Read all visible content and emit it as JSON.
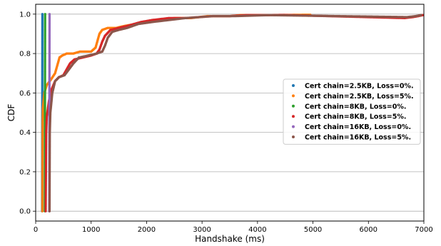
{
  "chart_data": {
    "type": "scatter",
    "xlabel": "Handshake (ms)",
    "ylabel": "CDF",
    "xlim": [
      0,
      7000
    ],
    "ylim": [
      -0.05,
      1.05
    ],
    "xticks": [
      0,
      1000,
      2000,
      3000,
      4000,
      5000,
      6000,
      7000
    ],
    "yticks": [
      0.0,
      0.2,
      0.4,
      0.6,
      0.8,
      1.0
    ],
    "ytick_labels": [
      "0.0",
      "0.2",
      "0.4",
      "0.6",
      "0.8",
      "1.0"
    ],
    "grid": "horizontal",
    "legend_position": "right",
    "series": [
      {
        "name": "Cert chain=2.5KB, Loss=0%.",
        "color": "#1f77b4",
        "points": [
          [
            116,
            0.0
          ],
          [
            117,
            0.2
          ],
          [
            118,
            0.4
          ],
          [
            119,
            0.6
          ],
          [
            120,
            0.8
          ],
          [
            121,
            1.0
          ]
        ]
      },
      {
        "name": "Cert chain=2.5KB, Loss=5%.",
        "color": "#ff7f0e",
        "points": [
          [
            120,
            0.0
          ],
          [
            122,
            0.2
          ],
          [
            125,
            0.45
          ],
          [
            130,
            0.52
          ],
          [
            155,
            0.6
          ],
          [
            200,
            0.64
          ],
          [
            280,
            0.67
          ],
          [
            350,
            0.7
          ],
          [
            400,
            0.75
          ],
          [
            430,
            0.78
          ],
          [
            480,
            0.79
          ],
          [
            560,
            0.8
          ],
          [
            680,
            0.8
          ],
          [
            800,
            0.81
          ],
          [
            1000,
            0.81
          ],
          [
            1080,
            0.83
          ],
          [
            1120,
            0.87
          ],
          [
            1150,
            0.9
          ],
          [
            1200,
            0.92
          ],
          [
            1300,
            0.93
          ],
          [
            1450,
            0.93
          ],
          [
            1600,
            0.94
          ],
          [
            1800,
            0.95
          ],
          [
            2000,
            0.96
          ],
          [
            2200,
            0.97
          ],
          [
            2500,
            0.98
          ],
          [
            2800,
            0.98
          ],
          [
            3100,
            0.99
          ],
          [
            3500,
            0.99
          ],
          [
            3700,
            0.995
          ],
          [
            4200,
            0.995
          ],
          [
            4950,
            0.997
          ]
        ]
      },
      {
        "name": "Cert chain=8KB, Loss=0%.",
        "color": "#2ca02c",
        "points": [
          [
            165,
            0.0
          ],
          [
            166,
            0.2
          ],
          [
            167,
            0.4
          ],
          [
            168,
            0.6
          ],
          [
            169,
            0.8
          ],
          [
            170,
            1.0
          ]
        ]
      },
      {
        "name": "Cert chain=8KB, Loss=5%.",
        "color": "#d62728",
        "points": [
          [
            180,
            0.0
          ],
          [
            190,
            0.4
          ],
          [
            200,
            0.48
          ],
          [
            240,
            0.56
          ],
          [
            290,
            0.62
          ],
          [
            350,
            0.66
          ],
          [
            420,
            0.68
          ],
          [
            500,
            0.69
          ],
          [
            560,
            0.72
          ],
          [
            620,
            0.75
          ],
          [
            700,
            0.77
          ],
          [
            850,
            0.78
          ],
          [
            1000,
            0.79
          ],
          [
            1100,
            0.8
          ],
          [
            1150,
            0.82
          ],
          [
            1200,
            0.86
          ],
          [
            1250,
            0.89
          ],
          [
            1350,
            0.92
          ],
          [
            1500,
            0.93
          ],
          [
            1650,
            0.94
          ],
          [
            1900,
            0.96
          ],
          [
            2100,
            0.97
          ],
          [
            2400,
            0.98
          ],
          [
            2700,
            0.98
          ],
          [
            3200,
            0.99
          ],
          [
            3500,
            0.99
          ],
          [
            3800,
            0.995
          ],
          [
            4200,
            0.995
          ],
          [
            4450,
            0.996
          ],
          [
            6650,
            0.98
          ],
          [
            6800,
            0.985
          ],
          [
            6900,
            0.99
          ],
          [
            6980,
            0.995
          ]
        ]
      },
      {
        "name": "Cert chain=16KB, Loss=0%.",
        "color": "#9467bd",
        "points": [
          [
            245,
            0.0
          ],
          [
            246,
            0.2
          ],
          [
            247,
            0.4
          ],
          [
            248,
            0.6
          ],
          [
            249,
            0.8
          ],
          [
            250,
            1.0
          ]
        ]
      },
      {
        "name": "Cert chain=16KB, Loss=5%.",
        "color": "#8c564b",
        "points": [
          [
            250,
            0.0
          ],
          [
            255,
            0.4
          ],
          [
            265,
            0.5
          ],
          [
            300,
            0.6
          ],
          [
            350,
            0.66
          ],
          [
            420,
            0.68
          ],
          [
            520,
            0.69
          ],
          [
            600,
            0.72
          ],
          [
            680,
            0.75
          ],
          [
            780,
            0.78
          ],
          [
            950,
            0.79
          ],
          [
            1100,
            0.8
          ],
          [
            1200,
            0.81
          ],
          [
            1250,
            0.84
          ],
          [
            1300,
            0.88
          ],
          [
            1380,
            0.91
          ],
          [
            1500,
            0.92
          ],
          [
            1650,
            0.93
          ],
          [
            1850,
            0.95
          ],
          [
            2100,
            0.96
          ],
          [
            2400,
            0.97
          ],
          [
            2700,
            0.98
          ],
          [
            3200,
            0.99
          ],
          [
            3600,
            0.99
          ],
          [
            4200,
            0.995
          ],
          [
            6700,
            0.985
          ],
          [
            6850,
            0.99
          ],
          [
            6950,
            0.995
          ]
        ]
      }
    ]
  }
}
